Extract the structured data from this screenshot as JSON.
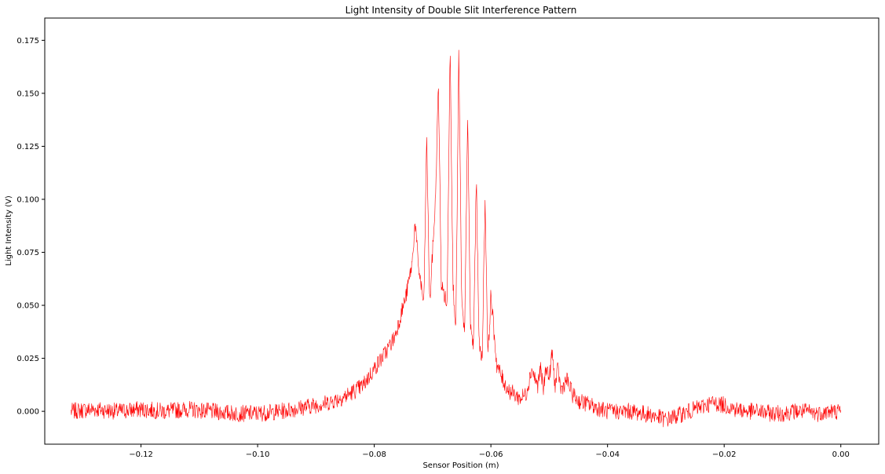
{
  "chart_data": {
    "type": "line",
    "title": "Light Intensity of Double Slit Interference Pattern",
    "xlabel": "Sensor Position (m)",
    "ylabel": "Light Intensity (V)",
    "xlim": [
      -0.1365,
      0.0065
    ],
    "ylim": [
      -0.0155,
      0.1855
    ],
    "xticks": [
      -0.12,
      -0.1,
      -0.08,
      -0.06,
      -0.04,
      -0.02,
      0.0
    ],
    "xtick_labels": [
      "−0.12",
      "−0.10",
      "−0.08",
      "−0.06",
      "−0.04",
      "−0.02",
      "0.00"
    ],
    "yticks": [
      0.0,
      0.025,
      0.05,
      0.075,
      0.1,
      0.125,
      0.15,
      0.175
    ],
    "ytick_labels": [
      "0.000",
      "0.025",
      "0.050",
      "0.075",
      "0.100",
      "0.125",
      "0.150",
      "0.175"
    ],
    "grid": false,
    "series": [
      {
        "color": "#ff0000",
        "x": [
          -0.132,
          -0.128,
          -0.124,
          -0.12,
          -0.116,
          -0.112,
          -0.108,
          -0.104,
          -0.1,
          -0.096,
          -0.092,
          -0.088,
          -0.085,
          -0.082,
          -0.08,
          -0.078,
          -0.0765,
          -0.0755,
          -0.0745,
          -0.0735,
          -0.073,
          -0.0725,
          -0.0715,
          -0.071,
          -0.0705,
          -0.0695,
          -0.069,
          -0.0685,
          -0.0675,
          -0.067,
          -0.0665,
          -0.066,
          -0.0655,
          -0.065,
          -0.0645,
          -0.064,
          -0.0635,
          -0.063,
          -0.0625,
          -0.062,
          -0.0615,
          -0.061,
          -0.0605,
          -0.06,
          -0.059,
          -0.058,
          -0.057,
          -0.056,
          -0.055,
          -0.054,
          -0.053,
          -0.052,
          -0.0515,
          -0.051,
          -0.0505,
          -0.05,
          -0.0495,
          -0.049,
          -0.0485,
          -0.048,
          -0.047,
          -0.046,
          -0.045,
          -0.044,
          -0.042,
          -0.04,
          -0.038,
          -0.036,
          -0.034,
          -0.032,
          -0.03,
          -0.028,
          -0.026,
          -0.024,
          -0.022,
          -0.02,
          -0.018,
          -0.016,
          -0.014,
          -0.012,
          -0.01,
          -0.008,
          -0.006,
          -0.004,
          -0.002,
          0.0
        ],
        "y": [
          0.0,
          0.001,
          0.0,
          0.001,
          0.0,
          0.001,
          0.0,
          -0.001,
          -0.001,
          0.0,
          0.002,
          0.004,
          0.007,
          0.012,
          0.02,
          0.028,
          0.035,
          0.045,
          0.055,
          0.07,
          0.09,
          0.07,
          0.05,
          0.13,
          0.05,
          0.1,
          0.155,
          0.06,
          0.05,
          0.175,
          0.06,
          0.04,
          0.17,
          0.05,
          0.035,
          0.14,
          0.04,
          0.03,
          0.11,
          0.03,
          0.025,
          0.1,
          0.025,
          0.055,
          0.022,
          0.015,
          0.01,
          0.008,
          0.006,
          0.008,
          0.02,
          0.012,
          0.02,
          0.01,
          0.022,
          0.015,
          0.028,
          0.012,
          0.02,
          0.01,
          0.015,
          0.008,
          0.005,
          0.004,
          0.002,
          0.0,
          0.0,
          0.0,
          -0.001,
          -0.002,
          -0.004,
          -0.002,
          0.0,
          0.002,
          0.004,
          0.003,
          0.001,
          0.0,
          0.0,
          -0.001,
          -0.001,
          0.0,
          0.0,
          -0.001,
          0.0,
          0.0
        ],
        "noise_amplitude": 0.004
      }
    ]
  }
}
